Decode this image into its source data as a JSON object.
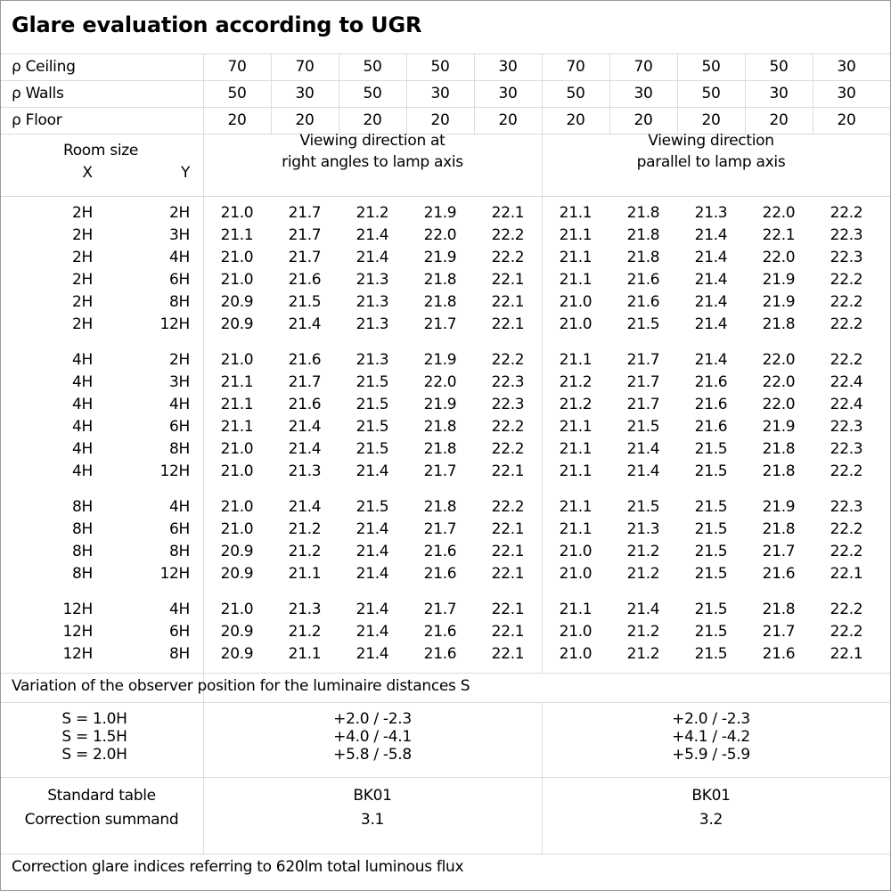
{
  "title": "Glare evaluation according to UGR",
  "reflectance": [
    {
      "label": "ρ Ceiling",
      "values": [
        "70",
        "70",
        "50",
        "50",
        "30",
        "70",
        "70",
        "50",
        "50",
        "30"
      ]
    },
    {
      "label": "ρ Walls",
      "values": [
        "50",
        "30",
        "50",
        "30",
        "30",
        "50",
        "30",
        "50",
        "30",
        "30"
      ]
    },
    {
      "label": "ρ Floor",
      "values": [
        "20",
        "20",
        "20",
        "20",
        "20",
        "20",
        "20",
        "20",
        "20",
        "20"
      ]
    }
  ],
  "header": {
    "room_size": "Room size",
    "x": "X",
    "y": "Y",
    "right_angles_1": "Viewing direction at",
    "right_angles_2": "right angles to lamp axis",
    "parallel_1": "Viewing direction",
    "parallel_2": "parallel to lamp axis"
  },
  "groups": [
    {
      "rows": [
        {
          "x": "2H",
          "y": "2H",
          "v": [
            "21.0",
            "21.7",
            "21.2",
            "21.9",
            "22.1",
            "21.1",
            "21.8",
            "21.3",
            "22.0",
            "22.2"
          ]
        },
        {
          "x": "2H",
          "y": "3H",
          "v": [
            "21.1",
            "21.7",
            "21.4",
            "22.0",
            "22.2",
            "21.1",
            "21.8",
            "21.4",
            "22.1",
            "22.3"
          ]
        },
        {
          "x": "2H",
          "y": "4H",
          "v": [
            "21.0",
            "21.7",
            "21.4",
            "21.9",
            "22.2",
            "21.1",
            "21.8",
            "21.4",
            "22.0",
            "22.3"
          ]
        },
        {
          "x": "2H",
          "y": "6H",
          "v": [
            "21.0",
            "21.6",
            "21.3",
            "21.8",
            "22.1",
            "21.1",
            "21.6",
            "21.4",
            "21.9",
            "22.2"
          ]
        },
        {
          "x": "2H",
          "y": "8H",
          "v": [
            "20.9",
            "21.5",
            "21.3",
            "21.8",
            "22.1",
            "21.0",
            "21.6",
            "21.4",
            "21.9",
            "22.2"
          ]
        },
        {
          "x": "2H",
          "y": "12H",
          "v": [
            "20.9",
            "21.4",
            "21.3",
            "21.7",
            "22.1",
            "21.0",
            "21.5",
            "21.4",
            "21.8",
            "22.2"
          ]
        }
      ]
    },
    {
      "rows": [
        {
          "x": "4H",
          "y": "2H",
          "v": [
            "21.0",
            "21.6",
            "21.3",
            "21.9",
            "22.2",
            "21.1",
            "21.7",
            "21.4",
            "22.0",
            "22.2"
          ]
        },
        {
          "x": "4H",
          "y": "3H",
          "v": [
            "21.1",
            "21.7",
            "21.5",
            "22.0",
            "22.3",
            "21.2",
            "21.7",
            "21.6",
            "22.0",
            "22.4"
          ]
        },
        {
          "x": "4H",
          "y": "4H",
          "v": [
            "21.1",
            "21.6",
            "21.5",
            "21.9",
            "22.3",
            "21.2",
            "21.7",
            "21.6",
            "22.0",
            "22.4"
          ]
        },
        {
          "x": "4H",
          "y": "6H",
          "v": [
            "21.1",
            "21.4",
            "21.5",
            "21.8",
            "22.2",
            "21.1",
            "21.5",
            "21.6",
            "21.9",
            "22.3"
          ]
        },
        {
          "x": "4H",
          "y": "8H",
          "v": [
            "21.0",
            "21.4",
            "21.5",
            "21.8",
            "22.2",
            "21.1",
            "21.4",
            "21.5",
            "21.8",
            "22.3"
          ]
        },
        {
          "x": "4H",
          "y": "12H",
          "v": [
            "21.0",
            "21.3",
            "21.4",
            "21.7",
            "22.1",
            "21.1",
            "21.4",
            "21.5",
            "21.8",
            "22.2"
          ]
        }
      ]
    },
    {
      "rows": [
        {
          "x": "8H",
          "y": "4H",
          "v": [
            "21.0",
            "21.4",
            "21.5",
            "21.8",
            "22.2",
            "21.1",
            "21.5",
            "21.5",
            "21.9",
            "22.3"
          ]
        },
        {
          "x": "8H",
          "y": "6H",
          "v": [
            "21.0",
            "21.2",
            "21.4",
            "21.7",
            "22.1",
            "21.1",
            "21.3",
            "21.5",
            "21.8",
            "22.2"
          ]
        },
        {
          "x": "8H",
          "y": "8H",
          "v": [
            "20.9",
            "21.2",
            "21.4",
            "21.6",
            "22.1",
            "21.0",
            "21.2",
            "21.5",
            "21.7",
            "22.2"
          ]
        },
        {
          "x": "8H",
          "y": "12H",
          "v": [
            "20.9",
            "21.1",
            "21.4",
            "21.6",
            "22.1",
            "21.0",
            "21.2",
            "21.5",
            "21.6",
            "22.1"
          ]
        }
      ]
    },
    {
      "rows": [
        {
          "x": "12H",
          "y": "4H",
          "v": [
            "21.0",
            "21.3",
            "21.4",
            "21.7",
            "22.1",
            "21.1",
            "21.4",
            "21.5",
            "21.8",
            "22.2"
          ]
        },
        {
          "x": "12H",
          "y": "6H",
          "v": [
            "20.9",
            "21.2",
            "21.4",
            "21.6",
            "22.1",
            "21.0",
            "21.2",
            "21.5",
            "21.7",
            "22.2"
          ]
        },
        {
          "x": "12H",
          "y": "8H",
          "v": [
            "20.9",
            "21.1",
            "21.4",
            "21.6",
            "22.1",
            "21.0",
            "21.2",
            "21.5",
            "21.6",
            "22.1"
          ]
        }
      ]
    }
  ],
  "variation": {
    "caption": "Variation of the observer position for the luminaire distances S",
    "rows": [
      {
        "s": "S = 1.0H",
        "right": "+2.0 / -2.3",
        "parallel": "+2.0 / -2.3"
      },
      {
        "s": "S = 1.5H",
        "right": "+4.0 / -4.1",
        "parallel": "+4.1 / -4.2"
      },
      {
        "s": "S = 2.0H",
        "right": "+5.8 / -5.8",
        "parallel": "+5.9 / -5.9"
      }
    ]
  },
  "standard": {
    "table_label": "Standard table",
    "table_right": "BK01",
    "table_parallel": "BK01",
    "summand_label": "Correction summand",
    "summand_right": "3.1",
    "summand_parallel": "3.2"
  },
  "footer": "Correction glare indices referring to 620lm total luminous flux",
  "colors": {
    "grid": "#dcdcdc",
    "frame": "#9a9a9a",
    "text": "#000000"
  }
}
